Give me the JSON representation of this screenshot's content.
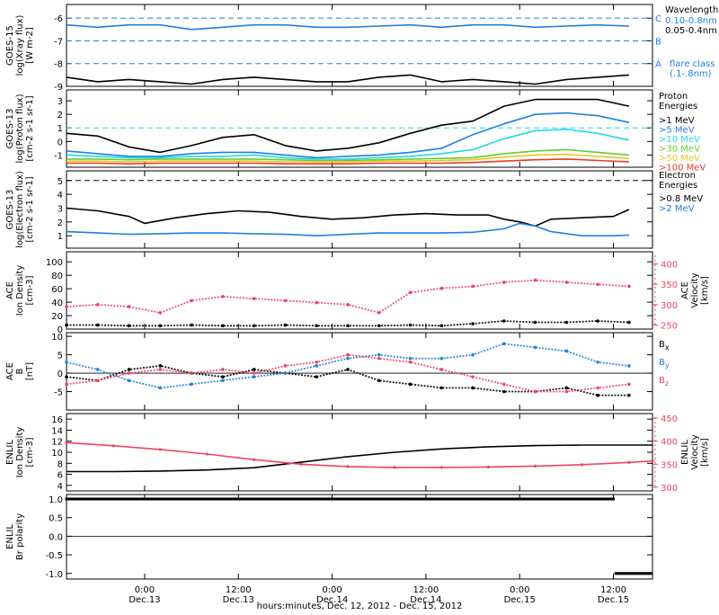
{
  "colors": {
    "black": "#000000",
    "blue": "#1f7fe0",
    "pink": "#ee4466",
    "cyan": "#22d8e8",
    "green": "#66cc33",
    "yellow": "#e8c820",
    "orange": "#f08a20",
    "red": "#e83a2a"
  },
  "xaxis": {
    "ticks": [
      {
        "t": 24,
        "time": "0:00",
        "day": "Dec.13"
      },
      {
        "t": 36,
        "time": "12:00",
        "day": "Dec.13"
      },
      {
        "t": 48,
        "time": "0:00",
        "day": "Dec.14"
      },
      {
        "t": 60,
        "time": "12:00",
        "day": "Dec.14"
      },
      {
        "t": 72,
        "time": "0:00",
        "day": "Dec.15"
      },
      {
        "t": 84,
        "time": "12:00",
        "day": "Dec.15"
      }
    ],
    "title": "hours:minutes, Dec. 12, 2012 - Dec. 15, 2012",
    "range": [
      14,
      89
    ]
  },
  "chart_data": [
    {
      "type": "line",
      "panel": "goes15-xray",
      "ylabel": "GOES-15 log(Xray flux) [W m-2]",
      "ylim": [
        -9,
        -5.4
      ],
      "yticks": [
        "-9",
        "-8",
        "-7",
        "-6"
      ],
      "yticks_v": [
        -9,
        -8,
        -7,
        -6
      ],
      "flare_levels": [
        {
          "name": "C",
          "v": -6
        },
        {
          "name": "B",
          "v": -7
        },
        {
          "name": "A",
          "v": -8
        }
      ],
      "legend": {
        "title": "Wavelength",
        "entries": [
          {
            "label": "0.10-0.8nm",
            "color": "#1f7fe0"
          },
          {
            "label": "0.05-0.4nm",
            "color": "#000000"
          }
        ],
        "note_line1": "flare class",
        "note_line2": "(.1-.8nm)"
      },
      "series": [
        {
          "color": "#1f7fe0",
          "x": [
            14,
            18,
            22,
            26,
            30,
            34,
            38,
            42,
            46,
            50,
            54,
            58,
            62,
            66,
            70,
            74,
            78,
            82,
            86
          ],
          "values": [
            -6.3,
            -6.4,
            -6.3,
            -6.3,
            -6.5,
            -6.4,
            -6.3,
            -6.3,
            -6.4,
            -6.4,
            -6.35,
            -6.3,
            -6.4,
            -6.3,
            -6.3,
            -6.4,
            -6.35,
            -6.3,
            -6.35
          ]
        },
        {
          "color": "#000000",
          "x": [
            14,
            18,
            22,
            26,
            30,
            34,
            38,
            42,
            46,
            50,
            54,
            58,
            62,
            66,
            70,
            74,
            78,
            82,
            86
          ],
          "values": [
            -8.6,
            -8.8,
            -8.7,
            -8.8,
            -8.9,
            -8.7,
            -8.6,
            -8.7,
            -8.8,
            -8.8,
            -8.6,
            -8.5,
            -8.8,
            -8.7,
            -8.8,
            -8.9,
            -8.7,
            -8.6,
            -8.5
          ]
        }
      ]
    },
    {
      "type": "line",
      "panel": "goes13-proton",
      "ylabel": "GOES-13 log(Proton flux) [cm-2 s-1 sr-1]",
      "ylim": [
        -1.9,
        3.8
      ],
      "yticks": [
        "-1",
        "0",
        "1",
        "2",
        "3"
      ],
      "yticks_v": [
        -1,
        0,
        1,
        2,
        3
      ],
      "threshold": 1,
      "legend": {
        "title_line1": "Proton",
        "title_line2": "Energies",
        "entries": [
          {
            "label": ">1 MeV",
            "color": "#000000"
          },
          {
            "label": ">5 MeV",
            "color": "#1f7fe0"
          },
          {
            "label": ">10 MeV",
            "color": "#22d8e8"
          },
          {
            "label": ">30 MeV",
            "color": "#66cc33"
          },
          {
            "label": ">50 MeV",
            "color": "#e8c820"
          },
          {
            "label": ">100 MeV",
            "color": "#e83a2a"
          }
        ]
      },
      "series": [
        {
          "color": "#000000",
          "x": [
            14,
            18,
            22,
            26,
            30,
            34,
            38,
            42,
            46,
            50,
            54,
            58,
            62,
            66,
            70,
            74,
            78,
            82,
            86
          ],
          "values": [
            0.6,
            0.4,
            -0.4,
            -0.8,
            -0.3,
            0.3,
            0.5,
            -0.3,
            -0.7,
            -0.5,
            -0.1,
            0.6,
            1.2,
            1.5,
            2.6,
            3.1,
            3.1,
            3.1,
            2.6
          ]
        },
        {
          "color": "#1f7fe0",
          "x": [
            14,
            18,
            22,
            26,
            30,
            34,
            38,
            42,
            46,
            50,
            54,
            58,
            62,
            66,
            70,
            74,
            78,
            82,
            86
          ],
          "values": [
            -0.7,
            -0.9,
            -1.1,
            -1.1,
            -0.9,
            -0.8,
            -0.8,
            -1.0,
            -1.2,
            -1.1,
            -1.0,
            -0.8,
            -0.5,
            0.5,
            1.3,
            2.0,
            2.1,
            1.9,
            1.4
          ]
        },
        {
          "color": "#22d8e8",
          "x": [
            14,
            18,
            22,
            26,
            30,
            34,
            38,
            42,
            46,
            50,
            54,
            58,
            62,
            66,
            70,
            74,
            78,
            82,
            86
          ],
          "values": [
            -1.0,
            -1.1,
            -1.2,
            -1.2,
            -1.1,
            -1.1,
            -1.0,
            -1.2,
            -1.3,
            -1.3,
            -1.2,
            -1.1,
            -0.9,
            -0.6,
            0.2,
            0.8,
            0.9,
            0.6,
            0.1
          ]
        },
        {
          "color": "#66cc33",
          "x": [
            14,
            18,
            22,
            26,
            30,
            34,
            38,
            42,
            46,
            50,
            54,
            58,
            62,
            66,
            70,
            74,
            78,
            82,
            86
          ],
          "values": [
            -1.3,
            -1.3,
            -1.35,
            -1.3,
            -1.3,
            -1.3,
            -1.3,
            -1.35,
            -1.4,
            -1.4,
            -1.35,
            -1.3,
            -1.25,
            -1.2,
            -0.9,
            -0.7,
            -0.6,
            -0.8,
            -1.0
          ]
        },
        {
          "color": "#e8c820",
          "x": [
            14,
            18,
            22,
            26,
            30,
            34,
            38,
            42,
            46,
            50,
            54,
            58,
            62,
            66,
            70,
            74,
            78,
            82,
            86
          ],
          "values": [
            -1.45,
            -1.45,
            -1.5,
            -1.45,
            -1.45,
            -1.45,
            -1.45,
            -1.5,
            -1.5,
            -1.5,
            -1.45,
            -1.45,
            -1.4,
            -1.35,
            -1.15,
            -1.0,
            -0.95,
            -1.1,
            -1.25
          ]
        },
        {
          "color": "#e83a2a",
          "x": [
            14,
            18,
            22,
            26,
            30,
            34,
            38,
            42,
            46,
            50,
            54,
            58,
            62,
            66,
            70,
            74,
            78,
            82,
            86
          ],
          "values": [
            -1.6,
            -1.6,
            -1.65,
            -1.6,
            -1.6,
            -1.6,
            -1.6,
            -1.65,
            -1.65,
            -1.65,
            -1.6,
            -1.6,
            -1.6,
            -1.55,
            -1.45,
            -1.35,
            -1.3,
            -1.4,
            -1.5
          ]
        }
      ]
    },
    {
      "type": "line",
      "panel": "goes13-electron",
      "ylabel": "GOES-13 log(Electron flux) [cm-2 s-1 sr-1]",
      "ylim": [
        0.1,
        5.7
      ],
      "yticks": [
        "1",
        "2",
        "3",
        "4",
        "5"
      ],
      "yticks_v": [
        1,
        2,
        3,
        4,
        5
      ],
      "threshold": 5,
      "legend": {
        "title_line1": "Electron",
        "title_line2": "Energies",
        "entries": [
          {
            "label": ">0.8 MeV",
            "color": "#000000"
          },
          {
            "label": ">2 MeV",
            "color": "#1f7fe0"
          }
        ]
      },
      "series": [
        {
          "color": "#000000",
          "x": [
            14,
            18,
            22,
            24,
            26,
            28,
            32,
            36,
            40,
            44,
            48,
            52,
            56,
            60,
            64,
            68,
            70,
            72,
            74,
            76,
            80,
            84,
            86
          ],
          "values": [
            3.0,
            2.8,
            2.4,
            1.9,
            2.1,
            2.3,
            2.6,
            2.8,
            2.7,
            2.4,
            2.2,
            2.3,
            2.5,
            2.6,
            2.5,
            2.5,
            2.2,
            2.0,
            1.7,
            2.2,
            2.3,
            2.4,
            2.9
          ]
        },
        {
          "color": "#1f7fe0",
          "x": [
            14,
            18,
            22,
            26,
            30,
            34,
            38,
            42,
            46,
            50,
            54,
            58,
            62,
            66,
            70,
            72,
            74,
            76,
            80,
            84,
            86
          ],
          "values": [
            1.3,
            1.2,
            1.1,
            1.15,
            1.2,
            1.2,
            1.15,
            1.1,
            1.0,
            1.1,
            1.2,
            1.2,
            1.2,
            1.25,
            1.5,
            1.9,
            1.7,
            1.3,
            1.0,
            1.0,
            1.05
          ]
        }
      ]
    },
    {
      "type": "scatter",
      "panel": "ace-density-velocity",
      "ylabel_left": "ACE Ion Density [cm-3]",
      "ylabel_right": "ACE Velocity [km/s]",
      "ylim": [
        0,
        115
      ],
      "yticks": [
        "0",
        "20",
        "40",
        "60",
        "80",
        "100"
      ],
      "yticks_v": [
        0,
        20,
        40,
        60,
        80,
        100
      ],
      "ylim_right": [
        240,
        430
      ],
      "yticks_right": [
        "250",
        "300",
        "350",
        "400"
      ],
      "yticks_right_v": [
        250,
        300,
        350,
        400
      ],
      "series": [
        {
          "color": "#000000",
          "axis": "left",
          "x": [
            14,
            18,
            22,
            26,
            30,
            34,
            38,
            42,
            46,
            50,
            54,
            58,
            62,
            66,
            70,
            74,
            78,
            82,
            86
          ],
          "values": [
            6,
            6,
            5,
            5,
            6,
            5,
            5,
            6,
            5,
            5,
            5,
            6,
            5,
            8,
            12,
            10,
            10,
            12,
            10
          ]
        },
        {
          "color": "#ee4466",
          "axis": "right",
          "x": [
            14,
            18,
            22,
            26,
            30,
            34,
            38,
            42,
            46,
            50,
            54,
            58,
            62,
            66,
            70,
            74,
            78,
            82,
            86
          ],
          "values": [
            295,
            300,
            295,
            280,
            310,
            320,
            315,
            310,
            305,
            300,
            280,
            330,
            340,
            345,
            355,
            360,
            355,
            350,
            345
          ]
        }
      ]
    },
    {
      "type": "scatter",
      "panel": "ace-magnetic",
      "ylabel": "ACE B [nT]",
      "ylim": [
        -10,
        11
      ],
      "yticks": [
        "-5",
        "0",
        "5",
        "10"
      ],
      "yticks_v": [
        -5,
        0,
        5,
        10
      ],
      "legend": {
        "entries": [
          {
            "label": "Bx",
            "color": "#000000"
          },
          {
            "label": "By",
            "color": "#1f7fe0"
          },
          {
            "label": "Bz",
            "color": "#ee4466"
          }
        ]
      },
      "series": [
        {
          "color": "#000000",
          "x": [
            14,
            18,
            22,
            26,
            30,
            34,
            38,
            42,
            46,
            50,
            54,
            58,
            62,
            66,
            70,
            74,
            78,
            82,
            86
          ],
          "values": [
            -1,
            -2,
            1,
            2,
            0,
            -1,
            1,
            0,
            -1,
            1,
            -2,
            -3,
            -4,
            -4,
            -5,
            -5,
            -4,
            -6,
            -6
          ]
        },
        {
          "color": "#1f7fe0",
          "x": [
            14,
            18,
            22,
            26,
            30,
            34,
            38,
            42,
            46,
            50,
            54,
            58,
            62,
            66,
            70,
            74,
            78,
            82,
            86
          ],
          "values": [
            3,
            1,
            -2,
            -4,
            -3,
            -2,
            -1,
            0,
            2,
            4,
            5,
            4,
            4,
            5,
            8,
            7,
            6,
            3,
            2
          ]
        },
        {
          "color": "#ee4466",
          "x": [
            14,
            18,
            22,
            26,
            30,
            34,
            38,
            42,
            46,
            50,
            54,
            58,
            62,
            66,
            70,
            74,
            78,
            82,
            86
          ],
          "values": [
            -3,
            -2,
            0,
            1,
            0,
            1,
            0,
            2,
            3,
            5,
            4,
            3,
            1,
            -1,
            -3,
            -5,
            -5,
            -4,
            -3
          ]
        }
      ]
    },
    {
      "type": "line",
      "panel": "enlil-density-velocity",
      "ylabel_left": "ENLIL Ion Density [cm-3]",
      "ylabel_right": "ENLIL Velocity [km/s]",
      "ylim": [
        3,
        17
      ],
      "yticks": [
        "4",
        "6",
        "8",
        "10",
        "12",
        "14",
        "16"
      ],
      "yticks_v": [
        4,
        6,
        8,
        10,
        12,
        14,
        16
      ],
      "ylim_right": [
        292,
        460
      ],
      "yticks_right": [
        "300",
        "350",
        "400",
        "450"
      ],
      "yticks_right_v": [
        300,
        350,
        400,
        450
      ],
      "series": [
        {
          "color": "#000000",
          "axis": "left",
          "x": [
            14,
            20,
            26,
            32,
            38,
            44,
            50,
            56,
            62,
            68,
            74,
            80,
            86,
            89
          ],
          "values": [
            6.5,
            6.5,
            6.6,
            6.8,
            7.2,
            8.2,
            9.2,
            10.0,
            10.6,
            11.0,
            11.2,
            11.3,
            11.3,
            11.3
          ]
        },
        {
          "color": "#ee4466",
          "axis": "right",
          "x": [
            14,
            20,
            26,
            32,
            38,
            44,
            50,
            56,
            62,
            68,
            74,
            80,
            86,
            89
          ],
          "values": [
            397,
            390,
            382,
            372,
            360,
            350,
            345,
            343,
            343,
            344,
            346,
            349,
            354,
            357
          ]
        }
      ]
    },
    {
      "type": "scatter",
      "panel": "enlil-polarity",
      "ylabel": "ENLIL Br polarity",
      "ylim": [
        -1.15,
        1.12
      ],
      "yticks": [
        "-1.0",
        "-0.5",
        "0.0",
        "0.5",
        "1.0"
      ],
      "yticks_v": [
        -1,
        -0.5,
        0,
        0.5,
        1
      ],
      "series": [
        {
          "color": "#000000",
          "segments": [
            {
              "x0": 14,
              "x1": 84,
              "y": 1
            },
            {
              "x0": 84.3,
              "x1": 89,
              "y": -1
            }
          ]
        }
      ]
    }
  ],
  "labels": {
    "p0": [
      "GOES-15",
      "log(Xray flux)",
      "[W m-2]"
    ],
    "p1": [
      "GOES-13",
      "log(Proton flux)",
      "[cm-2 s-1 sr-1]"
    ],
    "p2": [
      "GOES-13",
      "log(Electron flux)",
      "[cm-2 s-1 sr-1]"
    ],
    "p3": [
      "ACE",
      "Ion Density",
      "[cm-3]"
    ],
    "p3r": [
      "ACE",
      "Velocity",
      "[km/s]"
    ],
    "p4": [
      "ACE",
      "B",
      "[nT]"
    ],
    "p5": [
      "ENLIL",
      "Ion Density",
      "[cm-3]"
    ],
    "p5r": [
      "ENLIL",
      "Velocity",
      "[km/s]"
    ],
    "p6": [
      "ENLIL",
      "Br polarity"
    ]
  }
}
